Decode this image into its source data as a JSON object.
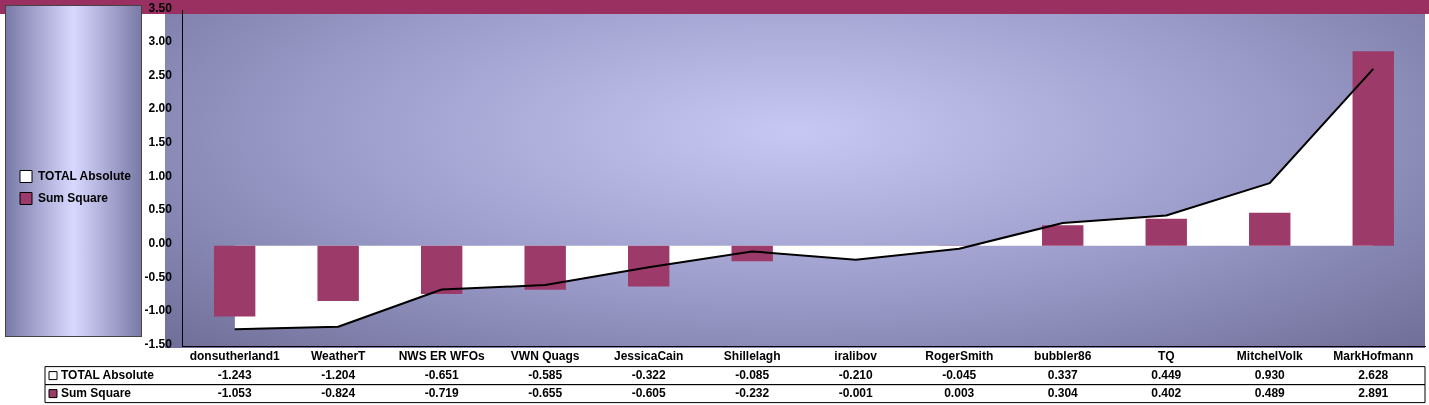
{
  "chart_data": {
    "type": "bar",
    "categories": [
      "donsutherland1",
      "WeatherT",
      "NWS ER WFOs",
      "VWN Quags",
      "JessicaCain",
      "Shillelagh",
      "iralibov",
      "RogerSmith",
      "bubbler86",
      "TQ",
      "MitchelVolk",
      "MarkHofmann"
    ],
    "series": [
      {
        "name": "TOTAL Absolute",
        "type": "area",
        "color": "#ffffff",
        "values": [
          -1.243,
          -1.204,
          -0.651,
          -0.585,
          -0.322,
          -0.085,
          -0.21,
          -0.045,
          0.337,
          0.449,
          0.93,
          2.628
        ],
        "value_labels": [
          "-1.243",
          "-1.204",
          "-0.651",
          "-0.585",
          "-0.322",
          "-0.085",
          "-0.210",
          "-0.045",
          "0.337",
          "0.449",
          "0.930",
          "2.628"
        ]
      },
      {
        "name": "Sum Square",
        "color": "#9c3a6a",
        "values": [
          -1.053,
          -0.824,
          -0.719,
          -0.655,
          -0.605,
          -0.232,
          -0.001,
          0.003,
          0.304,
          0.402,
          0.489,
          2.891
        ],
        "value_labels": [
          "-1.053",
          "-0.824",
          "-0.719",
          "-0.655",
          "-0.605",
          "-0.232",
          "-0.001",
          "0.003",
          "0.304",
          "0.402",
          "0.489",
          "2.891"
        ]
      }
    ],
    "ylim": [
      -1.5,
      3.5
    ],
    "yticks": [
      {
        "value": -1.5,
        "label": "-1.50"
      },
      {
        "value": -1,
        "label": "-1.00"
      },
      {
        "value": -0.5,
        "label": "-0.50"
      },
      {
        "value": 0,
        "label": "0.00"
      },
      {
        "value": 0.5,
        "label": "0.50"
      },
      {
        "value": 1,
        "label": "1.00"
      },
      {
        "value": 1.5,
        "label": "1.50"
      },
      {
        "value": 2,
        "label": "2.00"
      },
      {
        "value": 2.5,
        "label": "2.50"
      },
      {
        "value": 3,
        "label": "3.00"
      },
      {
        "value": 3.5,
        "label": "3.50"
      }
    ],
    "grid": false,
    "legend": "left"
  }
}
